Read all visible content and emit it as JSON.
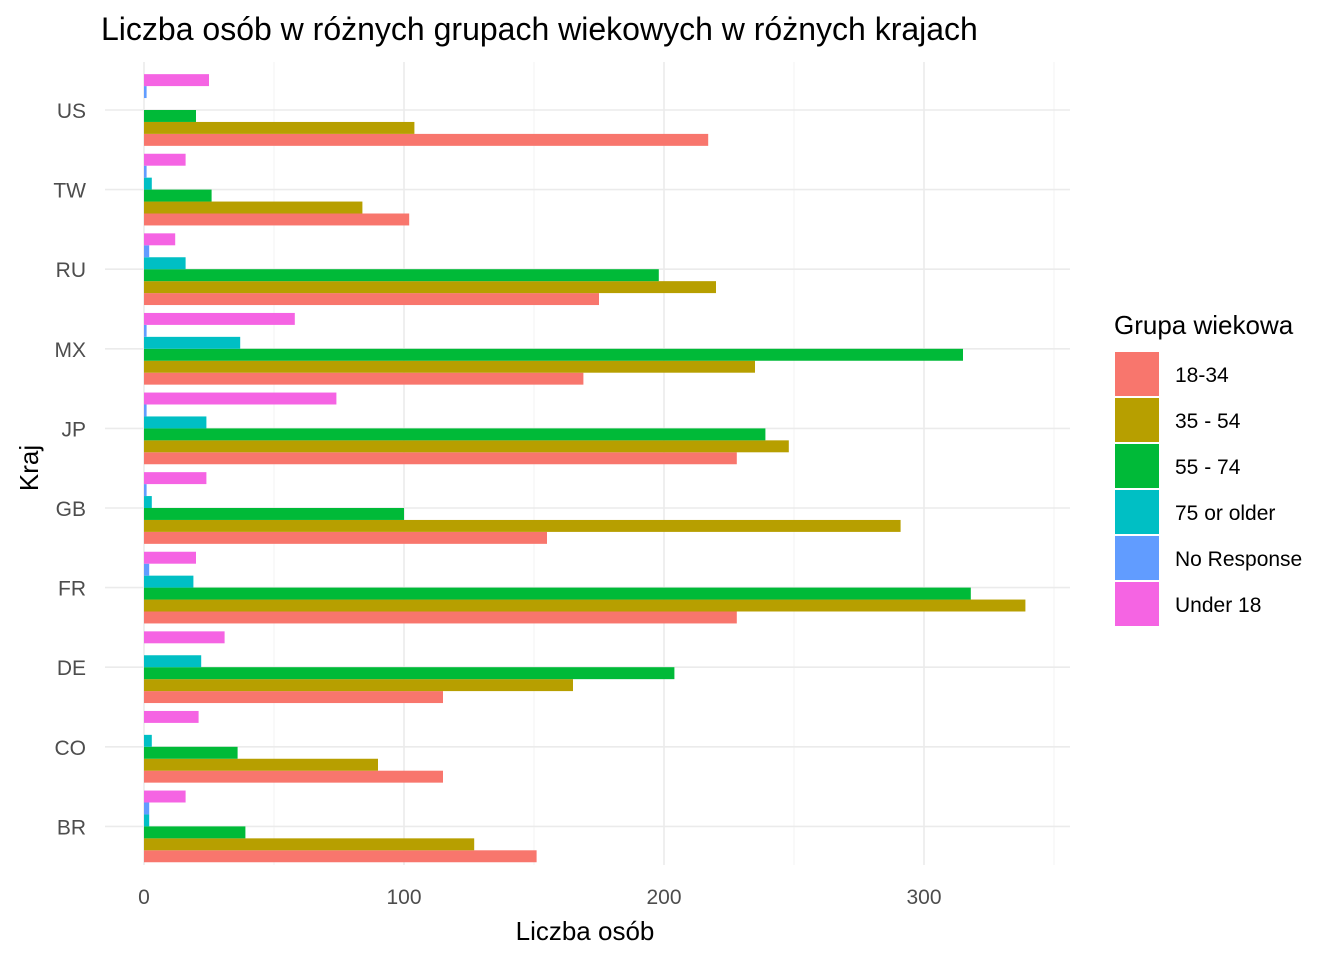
{
  "chart_data": {
    "type": "bar",
    "orientation": "horizontal",
    "title": "Liczba osób w różnych grupach wiekowych w różnych krajach",
    "xlabel": "Liczba osób",
    "ylabel": "Kraj",
    "xlim": [
      0,
      350
    ],
    "xticks": [
      0,
      100,
      200,
      300
    ],
    "xtick_labels": [
      "0",
      "100",
      "200",
      "300"
    ],
    "grid": true,
    "legend_position": "right",
    "legend_title": "Grupa wiekowa",
    "categories": [
      "BR",
      "CO",
      "DE",
      "FR",
      "GB",
      "JP",
      "MX",
      "RU",
      "TW",
      "US"
    ],
    "series": [
      {
        "name": "18-34",
        "color": "#F8766D",
        "values": [
          151,
          115,
          115,
          228,
          155,
          228,
          169,
          175,
          102,
          217
        ]
      },
      {
        "name": "35 - 54",
        "color": "#B79F00",
        "values": [
          127,
          90,
          165,
          339,
          291,
          248,
          235,
          220,
          84,
          104
        ]
      },
      {
        "name": "55 - 74",
        "color": "#00BA38",
        "values": [
          39,
          36,
          204,
          318,
          100,
          239,
          315,
          198,
          26,
          20
        ]
      },
      {
        "name": "75 or older",
        "color": "#00BFC4",
        "values": [
          2,
          3,
          22,
          19,
          3,
          24,
          37,
          16,
          3,
          0
        ]
      },
      {
        "name": "No Response",
        "color": "#619CFF",
        "values": [
          2,
          0,
          0,
          2,
          1,
          1,
          1,
          2,
          1,
          1
        ]
      },
      {
        "name": "Under 18",
        "color": "#F564E3",
        "values": [
          16,
          21,
          31,
          20,
          24,
          74,
          58,
          12,
          16,
          25
        ]
      }
    ]
  }
}
